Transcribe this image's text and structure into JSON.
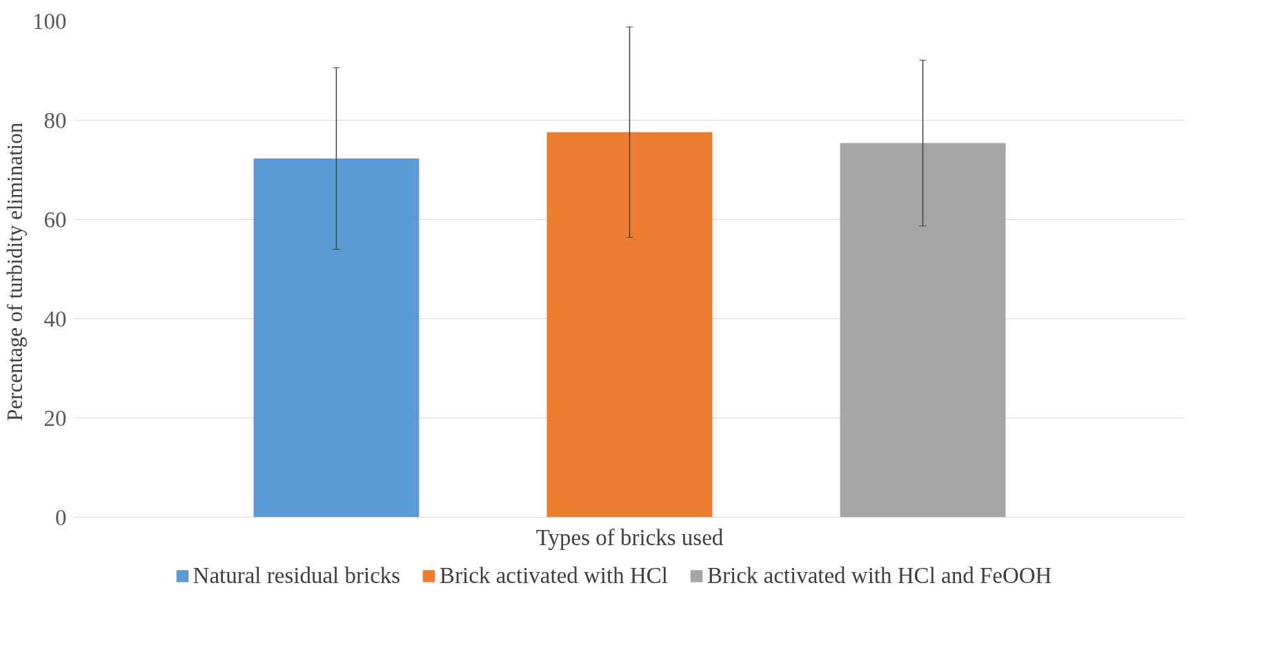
{
  "chart_data": {
    "type": "bar",
    "xlabel": "Types of bricks used",
    "ylabel": "Percentage of  turbidity elimination",
    "categories": [
      null
    ],
    "series": [
      {
        "name": "Natural residual bricks",
        "color": "#5b9bd5",
        "values": [
          72.3
        ],
        "errors": [
          18.3
        ]
      },
      {
        "name": "Brick activated with HCl",
        "color": "#ed7d31",
        "values": [
          77.6
        ],
        "errors": [
          21.2
        ]
      },
      {
        "name": "Brick activated with HCl and FeOOH",
        "color": "#a5a5a5",
        "values": [
          75.4
        ],
        "errors": [
          16.7
        ]
      }
    ],
    "ylim": [
      0,
      100
    ],
    "yticks": [
      0,
      20,
      40,
      60,
      80,
      100
    ],
    "grid": "y",
    "legend": "bottom"
  }
}
